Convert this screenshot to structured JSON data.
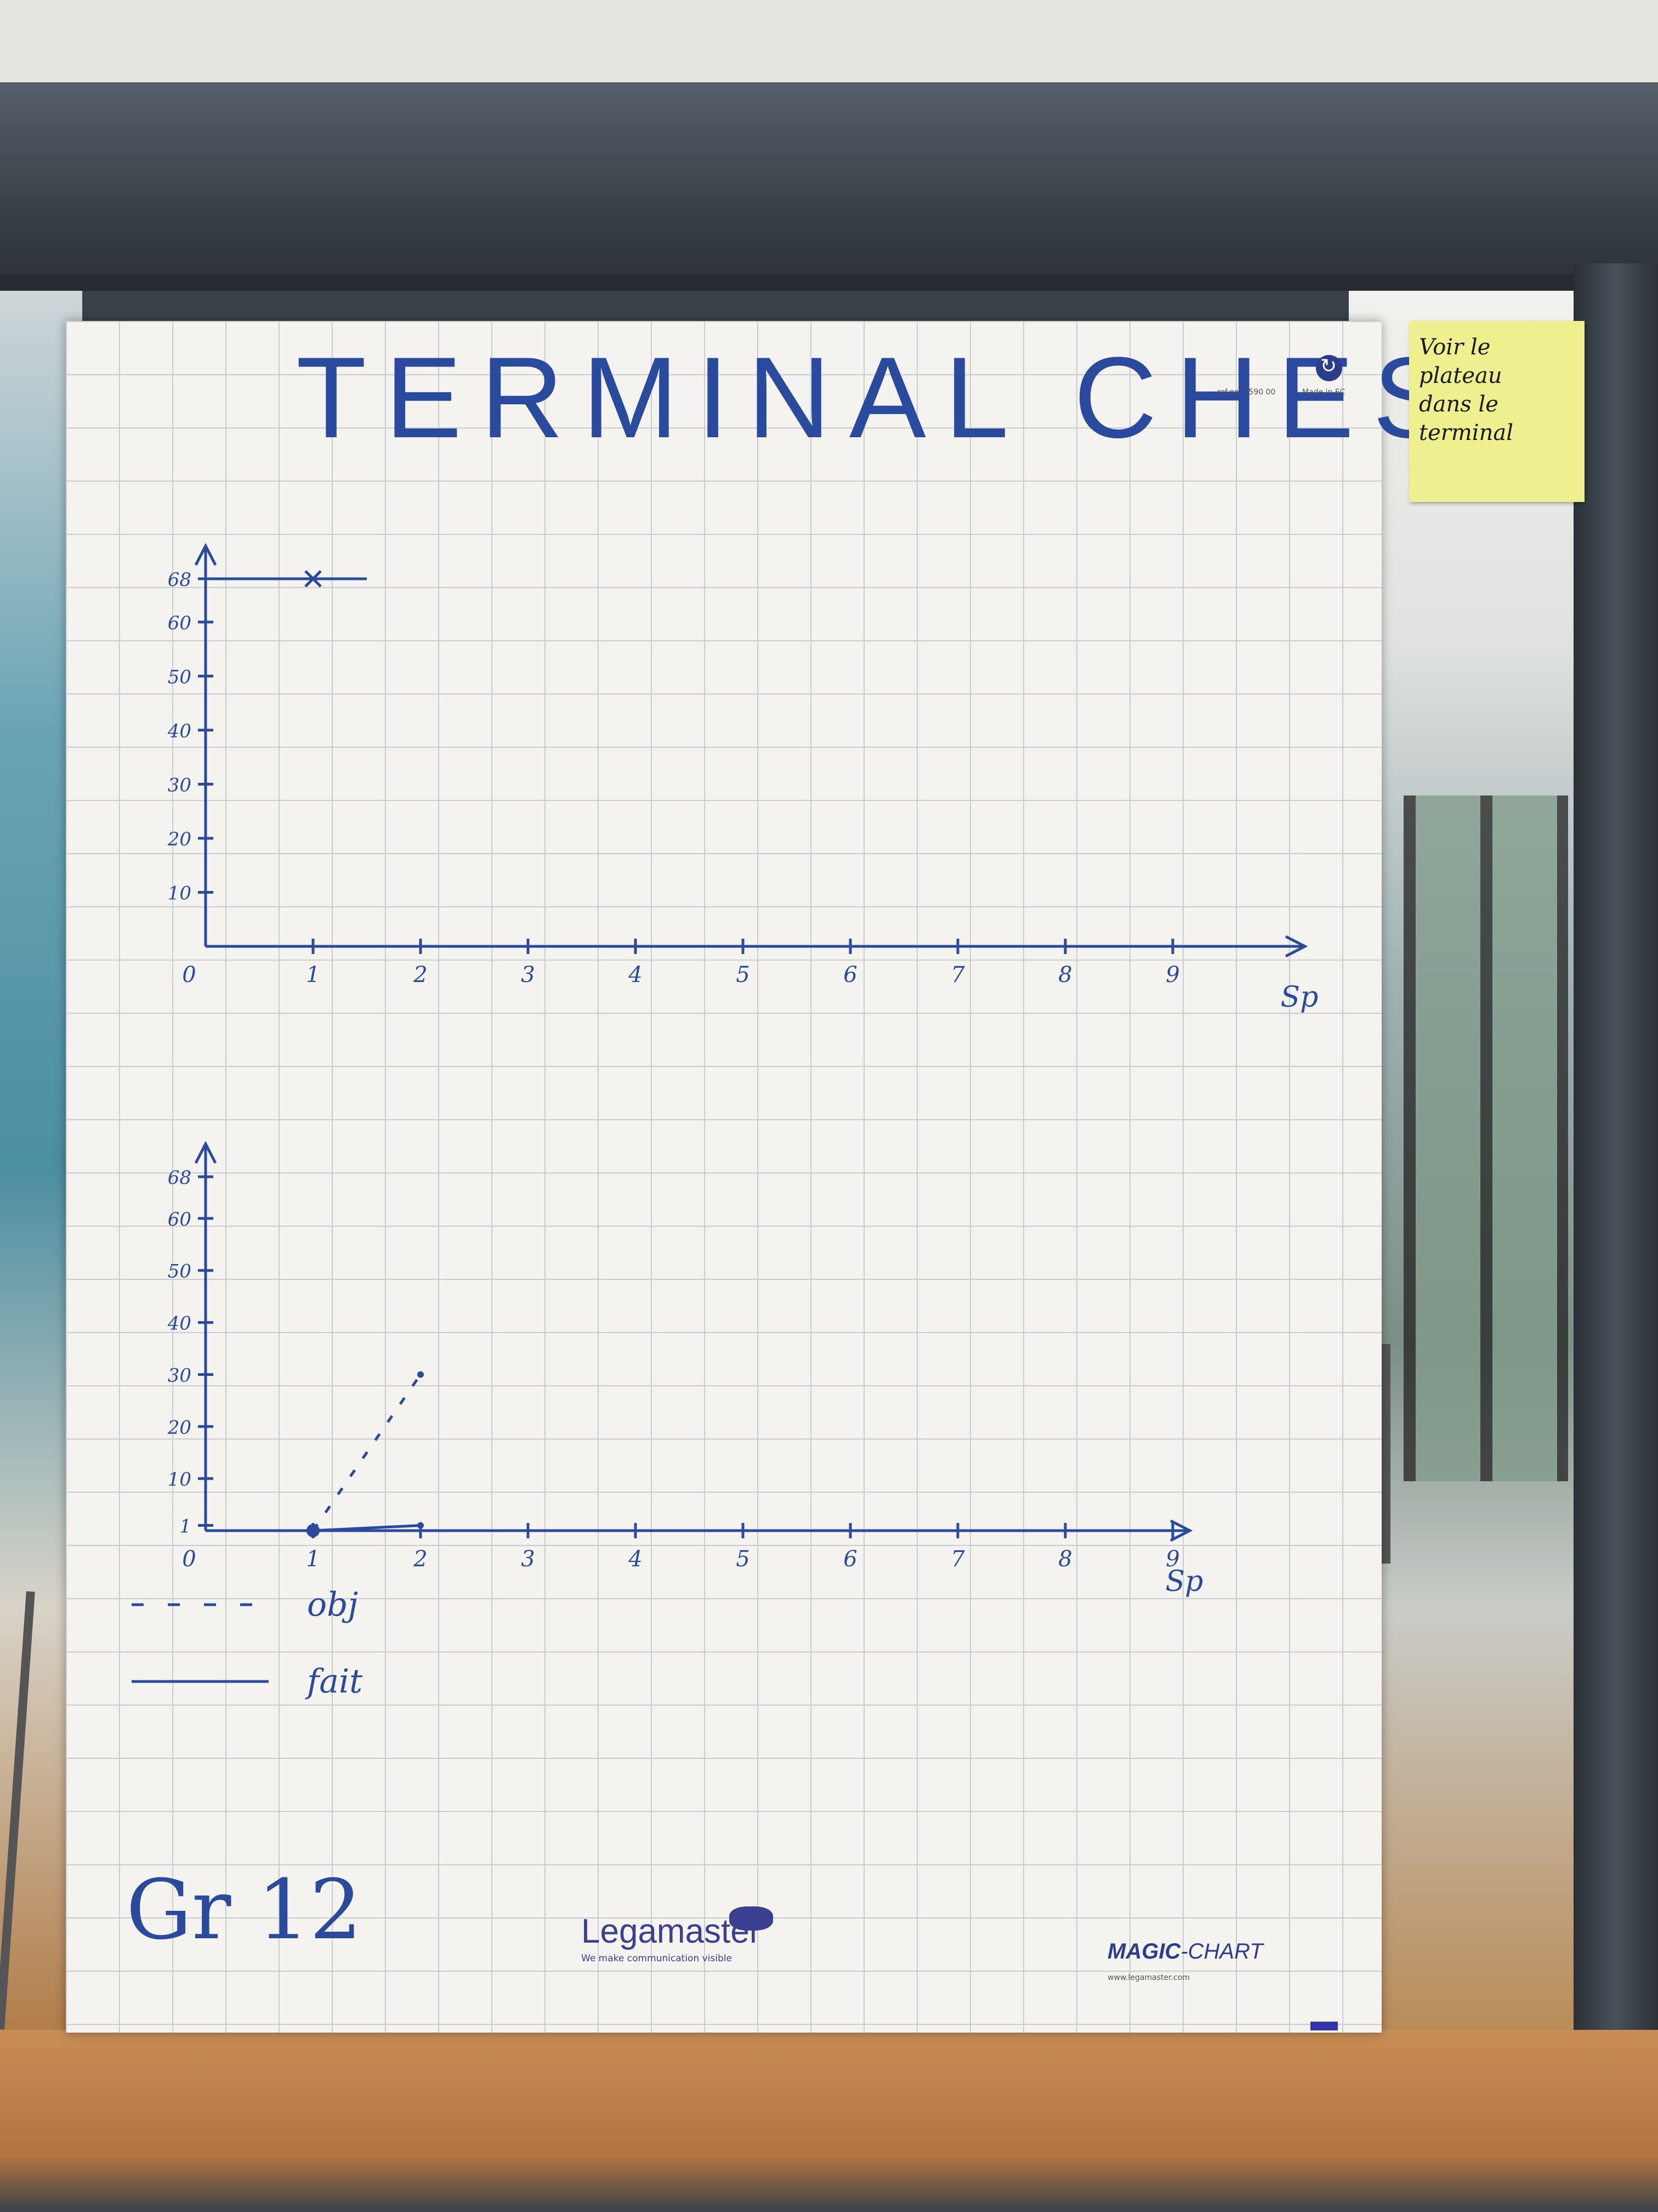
{
  "sheet": {
    "title": "TERMINAL CHESS",
    "ref": "ref.no. 1590 00",
    "made_in": "Made in EC",
    "group_label": "Gr 12",
    "brand": {
      "name": "Legamaster",
      "tagline": "We make communication visible"
    },
    "product": {
      "name_bold": "MAGIC",
      "name_rest": "-CHART",
      "url": "www.legamaster.com"
    }
  },
  "sticky_note": {
    "lines": [
      "Voir le plateau",
      "dans le terminal"
    ]
  },
  "colors": {
    "ink": "#2a4a9e",
    "paper": "#f4f3ef",
    "grid": "#c9ccd0",
    "sticky": "#eef090"
  },
  "chart_data": [
    {
      "type": "line",
      "xlabel": "Sp",
      "ylabel": "",
      "xlim": [
        0,
        10
      ],
      "ylim": [
        0,
        68
      ],
      "x_ticks": [
        0,
        1,
        2,
        3,
        4,
        5,
        6,
        7,
        8,
        9
      ],
      "y_ticks": [
        0,
        10,
        20,
        30,
        40,
        50,
        60,
        68
      ],
      "series": [
        {
          "style": "solid",
          "x": [
            0,
            1,
            1.5
          ],
          "y": [
            68,
            68,
            68
          ],
          "markers": [
            "",
            "x",
            ""
          ]
        }
      ],
      "legend": []
    },
    {
      "type": "line",
      "xlabel": "Sp",
      "ylabel": "",
      "xlim": [
        0,
        10
      ],
      "ylim": [
        0,
        68
      ],
      "x_ticks": [
        0,
        1,
        2,
        3,
        4,
        5,
        6,
        7,
        8,
        9
      ],
      "y_ticks": [
        0,
        1,
        10,
        20,
        30,
        40,
        50,
        60,
        68
      ],
      "series": [
        {
          "name": "obj",
          "style": "dashed",
          "x": [
            1,
            2
          ],
          "y": [
            0,
            30
          ]
        },
        {
          "name": "fait",
          "style": "solid",
          "x": [
            1,
            2
          ],
          "y": [
            0,
            1
          ]
        }
      ],
      "legend": [
        {
          "label": "obj",
          "style": "dashed"
        },
        {
          "label": "fait",
          "style": "solid"
        }
      ]
    }
  ]
}
